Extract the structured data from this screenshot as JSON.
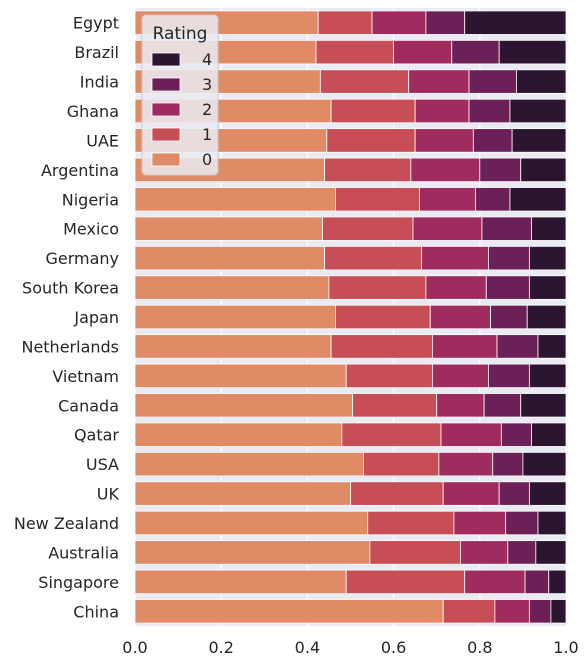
{
  "chart_data": {
    "type": "bar",
    "orientation": "horizontal",
    "stacked": true,
    "normalized": true,
    "categories": [
      "Egypt",
      "Brazil",
      "India",
      "Ghana",
      "UAE",
      "Argentina",
      "Nigeria",
      "Mexico",
      "Germany",
      "South Korea",
      "Japan",
      "Netherlands",
      "Vietnam",
      "Canada",
      "Qatar",
      "USA",
      "UK",
      "New Zealand",
      "Australia",
      "Singapore",
      "China"
    ],
    "series": [
      {
        "name": "0",
        "color": "#e08a66",
        "values": [
          0.425,
          0.42,
          0.43,
          0.455,
          0.445,
          0.44,
          0.465,
          0.435,
          0.44,
          0.45,
          0.465,
          0.455,
          0.49,
          0.505,
          0.48,
          0.53,
          0.5,
          0.54,
          0.545,
          0.49,
          0.715
        ]
      },
      {
        "name": "1",
        "color": "#c74d56",
        "values": [
          0.125,
          0.18,
          0.205,
          0.195,
          0.205,
          0.2,
          0.195,
          0.21,
          0.225,
          0.225,
          0.22,
          0.235,
          0.2,
          0.195,
          0.23,
          0.175,
          0.215,
          0.2,
          0.21,
          0.275,
          0.12
        ]
      },
      {
        "name": "2",
        "color": "#a02c5f",
        "values": [
          0.125,
          0.135,
          0.14,
          0.125,
          0.135,
          0.16,
          0.13,
          0.16,
          0.155,
          0.14,
          0.14,
          0.15,
          0.13,
          0.11,
          0.14,
          0.125,
          0.13,
          0.12,
          0.11,
          0.14,
          0.08
        ]
      },
      {
        "name": "3",
        "color": "#6b2057",
        "values": [
          0.09,
          0.11,
          0.11,
          0.095,
          0.09,
          0.095,
          0.08,
          0.115,
          0.095,
          0.1,
          0.085,
          0.095,
          0.095,
          0.085,
          0.07,
          0.07,
          0.07,
          0.075,
          0.065,
          0.055,
          0.05
        ]
      },
      {
        "name": "4",
        "color": "#2b1530",
        "values": [
          0.235,
          0.155,
          0.115,
          0.13,
          0.125,
          0.105,
          0.13,
          0.08,
          0.085,
          0.085,
          0.09,
          0.065,
          0.085,
          0.105,
          0.08,
          0.1,
          0.085,
          0.065,
          0.07,
          0.04,
          0.035
        ]
      }
    ],
    "xlim": [
      0,
      1.0
    ],
    "xticks": [
      "0.0",
      "0.2",
      "0.4",
      "0.6",
      "0.8",
      "1.0"
    ],
    "xlabel": "",
    "ylabel": "",
    "title": "",
    "grid": true,
    "legend": {
      "title": "Rating",
      "placement": "top-left",
      "entries": [
        "4",
        "3",
        "2",
        "1",
        "0"
      ]
    }
  }
}
